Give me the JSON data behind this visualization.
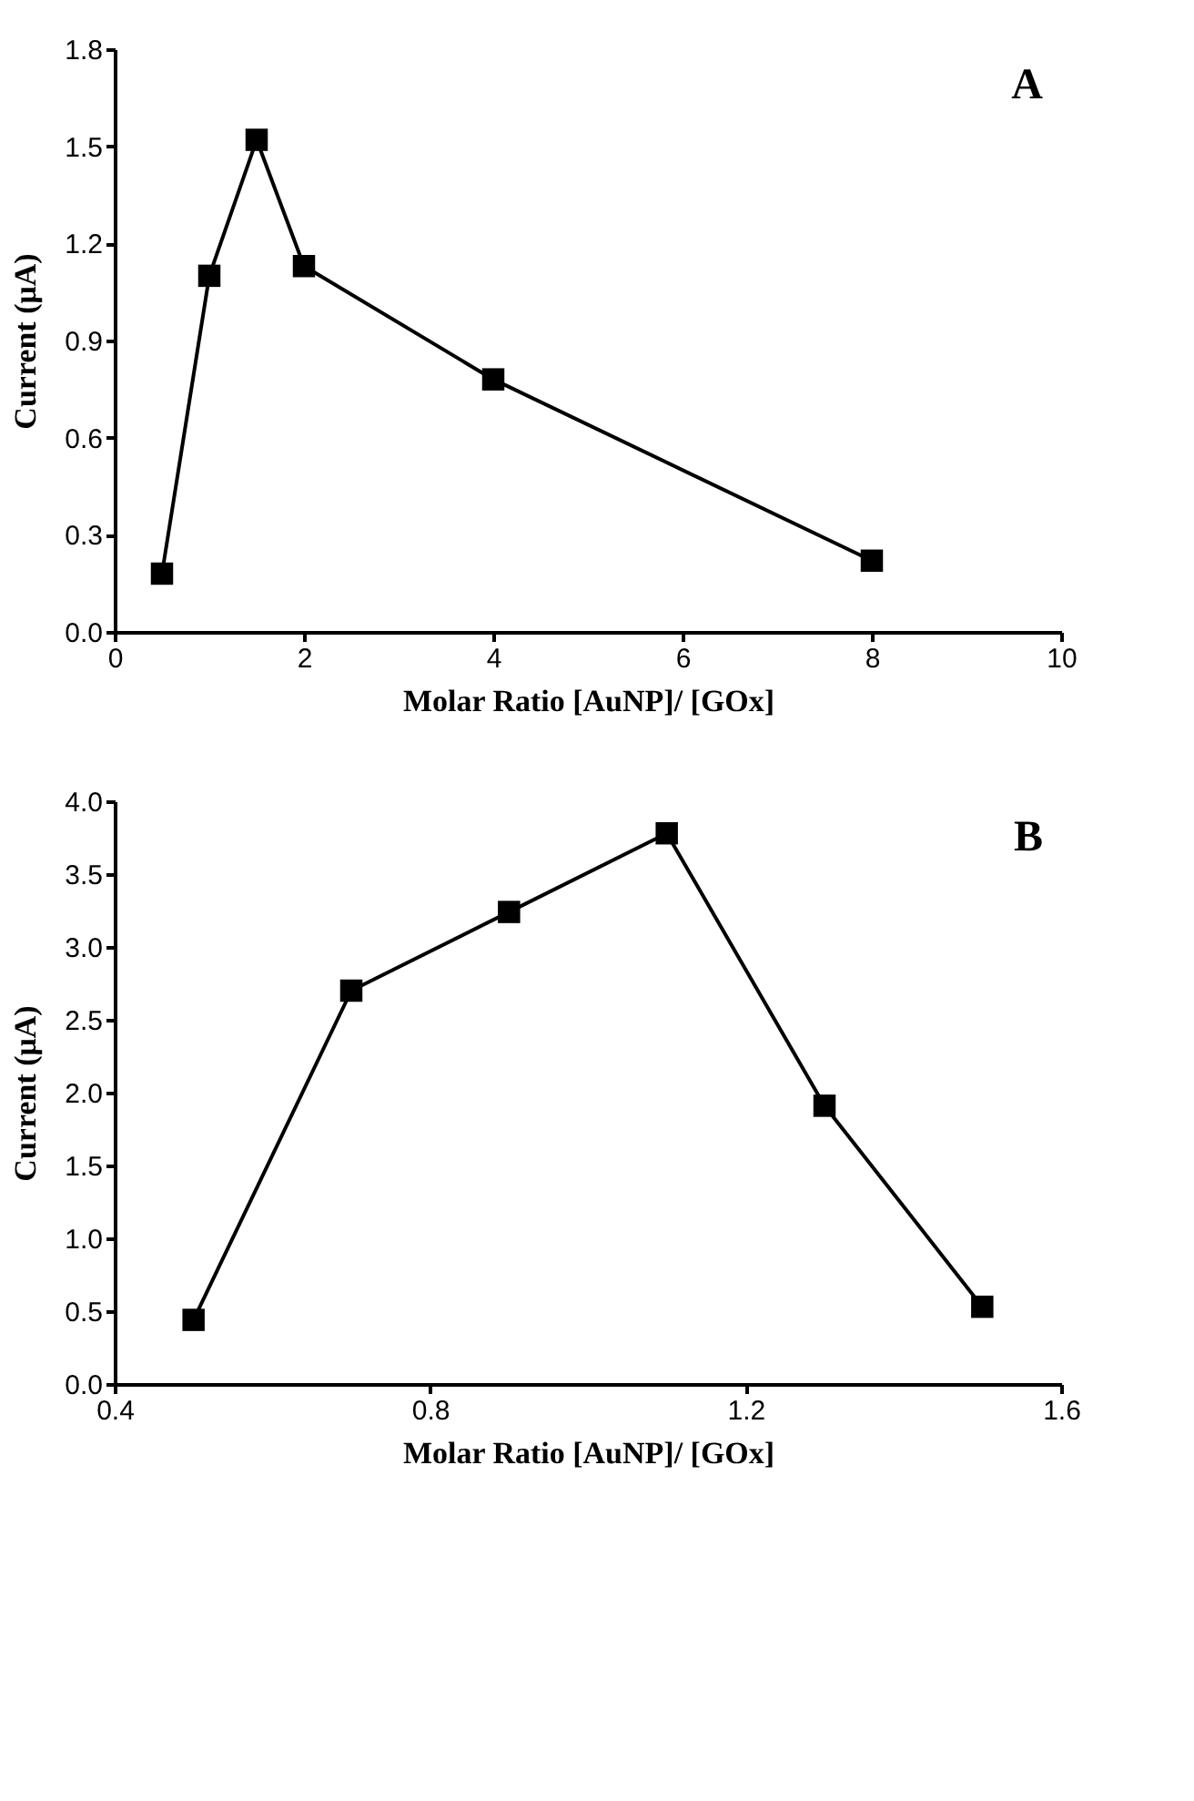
{
  "chart_data": [
    {
      "type": "line",
      "xlabel": "Molar Ratio [AuNP]/ [GOx]",
      "ylabel": "Current (μA)",
      "annotations": [
        "A"
      ],
      "x": [
        0.5,
        1,
        1.5,
        2,
        4,
        8
      ],
      "series": [
        {
          "color": "#000000",
          "values": [
            0.18,
            1.1,
            1.52,
            1.13,
            0.78,
            0.22
          ]
        }
      ],
      "xlim": [
        0,
        10
      ],
      "xticks": [
        0,
        2,
        4,
        6,
        8,
        10
      ],
      "ylim": [
        0,
        1.8
      ],
      "yticks": [
        {
          "value": 0,
          "label": "0.0"
        },
        0.3,
        0.6,
        0.9,
        1.2,
        1.5,
        1.8
      ],
      "marker": "square",
      "line_style": "solid",
      "grid": false,
      "legend": false
    },
    {
      "type": "line",
      "xlabel": "Molar Ratio [AuNP]/ [GOx]",
      "ylabel": "Current (μA)",
      "annotations": [
        "B"
      ],
      "x": [
        0.5,
        0.7,
        0.9,
        1.1,
        1.3,
        1.5
      ],
      "series": [
        {
          "color": "#000000",
          "values": [
            0.44,
            2.7,
            3.24,
            3.78,
            1.91,
            0.53
          ]
        }
      ],
      "xlim": [
        0.4,
        1.6
      ],
      "xticks": [
        0.4,
        0.8,
        1.2,
        1.6
      ],
      "ylim": [
        0,
        4
      ],
      "yticks": [
        {
          "value": 0,
          "label": "0.0"
        },
        0.5,
        {
          "value": 1,
          "label": "1.0"
        },
        1.5,
        {
          "value": 2,
          "label": "2.0"
        },
        2.5,
        {
          "value": 3,
          "label": "3.0"
        },
        3.5,
        {
          "value": 4,
          "label": "4.0"
        }
      ],
      "marker": "square",
      "line_style": "solid",
      "grid": false,
      "legend": false
    }
  ]
}
